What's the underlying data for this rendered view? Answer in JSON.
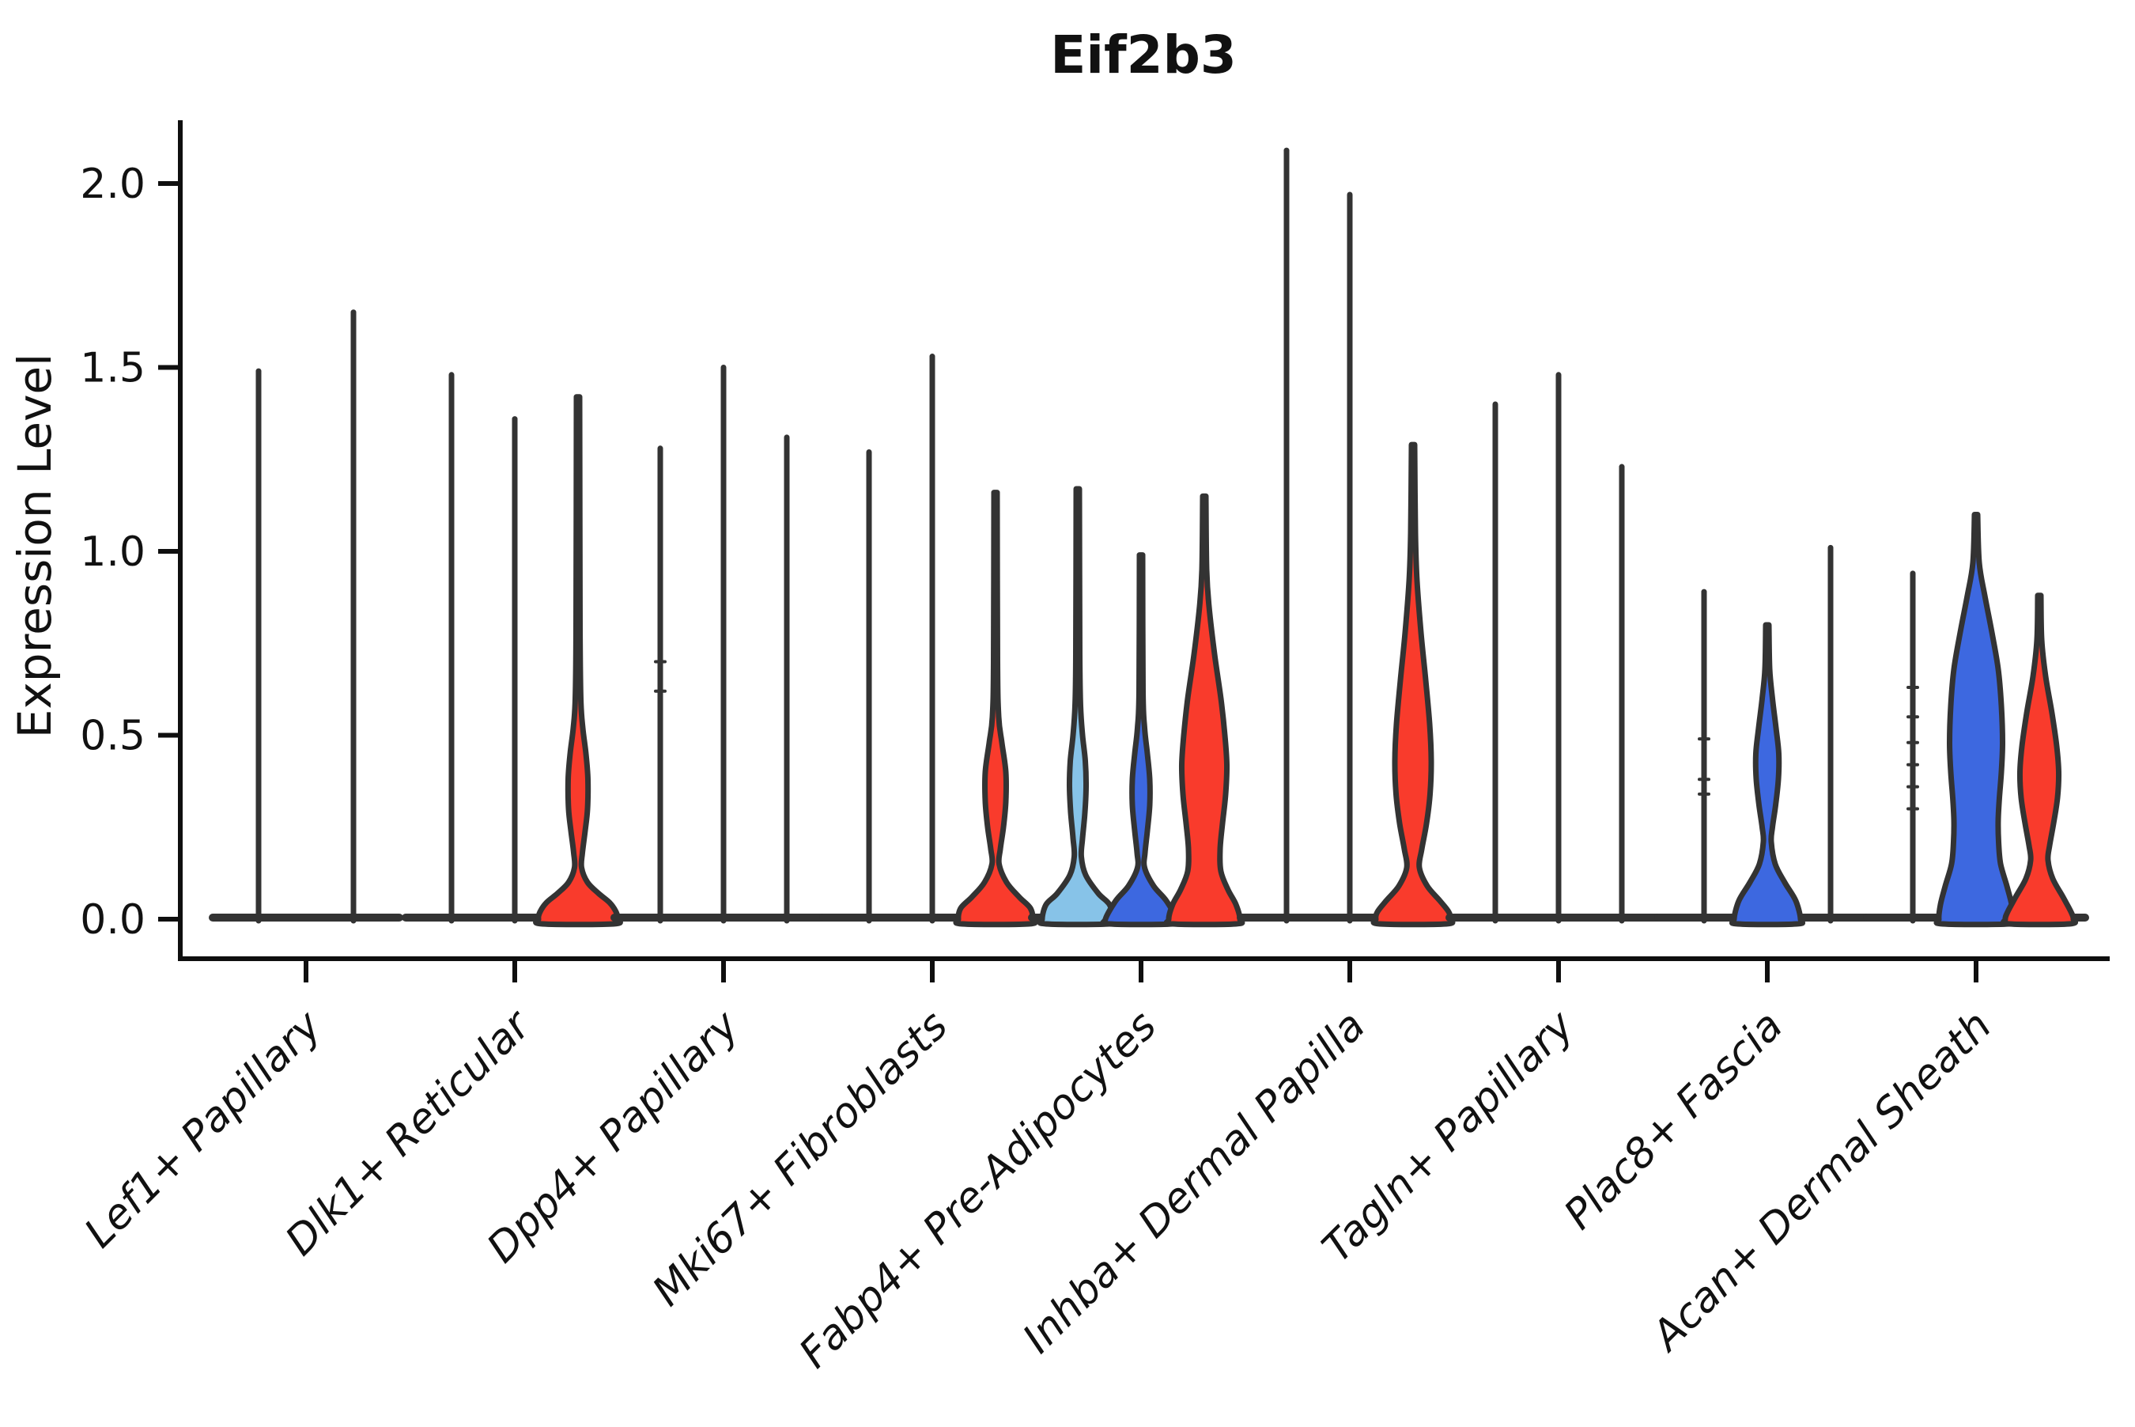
{
  "title": "Eif2b3",
  "ylabel": "Expression Level",
  "colors": {
    "red": "#F93B2C",
    "blue": "#3D68E0",
    "lightblue": "#87C3E8",
    "outline": "#333333",
    "axis": "#0f0f0f"
  },
  "chart_data": {
    "type": "violin",
    "title": "Eif2b3",
    "ylabel": "Expression Level",
    "xlabel": "",
    "ylim": [
      -0.06,
      2.17
    ],
    "yticks": [
      "0.0",
      "0.5",
      "1.0",
      "1.5",
      "2.0"
    ],
    "ytick_values": [
      0.0,
      0.5,
      1.0,
      1.5,
      2.0
    ],
    "grid": "off",
    "legend": "none",
    "categories": [
      "Lef1+ Papillary",
      "Dlk1+ Reticular",
      "Dpp4+ Papillary",
      "Mki67+ Fibroblasts",
      "Fabp4+ Pre-Adipocytes",
      "Inhba+ Dermal Papilla",
      "Tagln+ Papillary",
      "Plac8+ Fascia",
      "Acan+ Dermal Sheath"
    ],
    "groups": [
      {
        "label": "Lef1+ Papillary",
        "violins": [
          {
            "offset": -60,
            "max": 1.49,
            "fill": null
          },
          {
            "offset": 60,
            "max": 1.65,
            "fill": null
          }
        ]
      },
      {
        "label": "Dlk1+ Reticular",
        "violins": [
          {
            "offset": -80,
            "max": 1.48,
            "fill": null
          },
          {
            "offset": 0,
            "max": 1.36,
            "fill": null
          },
          {
            "offset": 80,
            "max": 1.42,
            "fill": "red",
            "profile": [
              [
                1.42,
                2
              ],
              [
                0.8,
                2.5
              ],
              [
                0.6,
                3.5
              ],
              [
                0.52,
                6
              ],
              [
                0.45,
                10
              ],
              [
                0.38,
                12.5
              ],
              [
                0.3,
                12
              ],
              [
                0.24,
                9
              ],
              [
                0.18,
                5.5
              ],
              [
                0.14,
                4.5
              ],
              [
                0.1,
                12
              ],
              [
                0.07,
                26
              ],
              [
                0.045,
                40
              ],
              [
                0.02,
                48
              ],
              [
                0,
                50
              ]
            ]
          }
        ]
      },
      {
        "label": "Dpp4+ Papillary",
        "violins": [
          {
            "offset": -80,
            "max": 1.28,
            "fill": null,
            "dots": [
              0.7,
              0.62
            ]
          },
          {
            "offset": 0,
            "max": 1.5,
            "fill": null
          },
          {
            "offset": 80,
            "max": 1.31,
            "fill": null
          }
        ]
      },
      {
        "label": "Mki67+ Fibroblasts",
        "violins": [
          {
            "offset": -80,
            "max": 1.27,
            "fill": null
          },
          {
            "offset": 0,
            "max": 1.53,
            "fill": null
          },
          {
            "offset": 80,
            "max": 1.16,
            "fill": "red",
            "profile": [
              [
                1.16,
                2
              ],
              [
                0.7,
                2.5
              ],
              [
                0.55,
                4
              ],
              [
                0.48,
                8
              ],
              [
                0.4,
                13
              ],
              [
                0.32,
                13
              ],
              [
                0.25,
                10
              ],
              [
                0.19,
                6
              ],
              [
                0.15,
                4.5
              ],
              [
                0.1,
                14
              ],
              [
                0.06,
                30
              ],
              [
                0.03,
                44
              ],
              [
                0,
                47
              ]
            ]
          }
        ]
      },
      {
        "label": "Fabp4+ Pre-Adipocytes",
        "violins": [
          {
            "offset": -80,
            "max": 1.17,
            "fill": "lightblue",
            "profile": [
              [
                1.17,
                2
              ],
              [
                0.72,
                2.5
              ],
              [
                0.58,
                3.5
              ],
              [
                0.5,
                6
              ],
              [
                0.43,
                9.5
              ],
              [
                0.36,
                10.5
              ],
              [
                0.29,
                9
              ],
              [
                0.22,
                6
              ],
              [
                0.17,
                4.5
              ],
              [
                0.12,
                10
              ],
              [
                0.07,
                26
              ],
              [
                0.04,
                40
              ],
              [
                0,
                45
              ]
            ]
          },
          {
            "offset": 0,
            "max": 0.99,
            "fill": "blue",
            "profile": [
              [
                0.99,
                2
              ],
              [
                0.62,
                2.5
              ],
              [
                0.52,
                4.5
              ],
              [
                0.45,
                8
              ],
              [
                0.38,
                11
              ],
              [
                0.31,
                11
              ],
              [
                0.24,
                8
              ],
              [
                0.18,
                5
              ],
              [
                0.14,
                4.5
              ],
              [
                0.09,
                16
              ],
              [
                0.05,
                32
              ],
              [
                0,
                45
              ]
            ]
          },
          {
            "offset": 80,
            "max": 1.15,
            "fill": "red",
            "profile": [
              [
                1.15,
                2
              ],
              [
                0.95,
                3
              ],
              [
                0.85,
                6
              ],
              [
                0.72,
                13
              ],
              [
                0.6,
                21
              ],
              [
                0.5,
                26
              ],
              [
                0.42,
                28.5
              ],
              [
                0.34,
                27
              ],
              [
                0.26,
                23
              ],
              [
                0.19,
                20
              ],
              [
                0.13,
                21
              ],
              [
                0.08,
                30
              ],
              [
                0.04,
                40
              ],
              [
                0,
                45
              ]
            ]
          }
        ]
      },
      {
        "label": "Inhba+ Dermal Papilla",
        "violins": [
          {
            "offset": -80,
            "max": 2.09,
            "fill": null
          },
          {
            "offset": 0,
            "max": 1.97,
            "fill": null
          },
          {
            "offset": 80,
            "max": 1.29,
            "fill": "red",
            "profile": [
              [
                1.29,
                2
              ],
              [
                1.05,
                3
              ],
              [
                0.92,
                5
              ],
              [
                0.78,
                10
              ],
              [
                0.65,
                16
              ],
              [
                0.53,
                21
              ],
              [
                0.43,
                23
              ],
              [
                0.34,
                21.5
              ],
              [
                0.26,
                17
              ],
              [
                0.19,
                11
              ],
              [
                0.14,
                8
              ],
              [
                0.09,
                18
              ],
              [
                0.05,
                34
              ],
              [
                0.02,
                45
              ],
              [
                0,
                47
              ]
            ]
          }
        ]
      },
      {
        "label": "Tagln+ Papillary",
        "violins": [
          {
            "offset": -80,
            "max": 1.4,
            "fill": null
          },
          {
            "offset": 0,
            "max": 1.48,
            "fill": null
          },
          {
            "offset": 80,
            "max": 1.23,
            "fill": null
          }
        ]
      },
      {
        "label": "Plac8+ Fascia",
        "violins": [
          {
            "offset": -80,
            "max": 0.89,
            "fill": null,
            "dots": [
              0.49,
              0.38,
              0.34
            ]
          },
          {
            "offset": 0,
            "max": 0.8,
            "fill": "blue",
            "profile": [
              [
                0.8,
                2
              ],
              [
                0.68,
                3
              ],
              [
                0.6,
                6.5
              ],
              [
                0.52,
                11
              ],
              [
                0.45,
                14.5
              ],
              [
                0.38,
                14
              ],
              [
                0.31,
                10.5
              ],
              [
                0.25,
                6.5
              ],
              [
                0.21,
                5
              ],
              [
                0.15,
                10
              ],
              [
                0.1,
                22
              ],
              [
                0.05,
                36
              ],
              [
                0,
                42
              ]
            ]
          },
          {
            "offset": 80,
            "max": 1.01,
            "fill": null
          }
        ]
      },
      {
        "label": "Acan+ Dermal Sheath",
        "violins": [
          {
            "offset": -80,
            "max": 0.94,
            "fill": null,
            "dots": [
              0.63,
              0.55,
              0.48,
              0.42,
              0.36,
              0.3
            ]
          },
          {
            "offset": 0,
            "max": 1.1,
            "fill": "blue",
            "profile": [
              [
                1.1,
                2
              ],
              [
                0.97,
                4
              ],
              [
                0.88,
                11
              ],
              [
                0.78,
                20
              ],
              [
                0.68,
                28
              ],
              [
                0.58,
                32
              ],
              [
                0.48,
                33.5
              ],
              [
                0.4,
                32
              ],
              [
                0.33,
                29.5
              ],
              [
                0.27,
                28
              ],
              [
                0.21,
                28.5
              ],
              [
                0.15,
                31
              ],
              [
                0.09,
                39
              ],
              [
                0.04,
                45
              ],
              [
                0,
                47
              ]
            ]
          },
          {
            "offset": 80,
            "max": 0.88,
            "fill": "red",
            "profile": [
              [
                0.88,
                2
              ],
              [
                0.76,
                3
              ],
              [
                0.66,
                8
              ],
              [
                0.56,
                16
              ],
              [
                0.47,
                22
              ],
              [
                0.4,
                24.5
              ],
              [
                0.33,
                23
              ],
              [
                0.26,
                18
              ],
              [
                0.2,
                13
              ],
              [
                0.16,
                11
              ],
              [
                0.11,
                17
              ],
              [
                0.06,
                30
              ],
              [
                0.02,
                40
              ],
              [
                0,
                43
              ]
            ]
          }
        ]
      }
    ]
  }
}
